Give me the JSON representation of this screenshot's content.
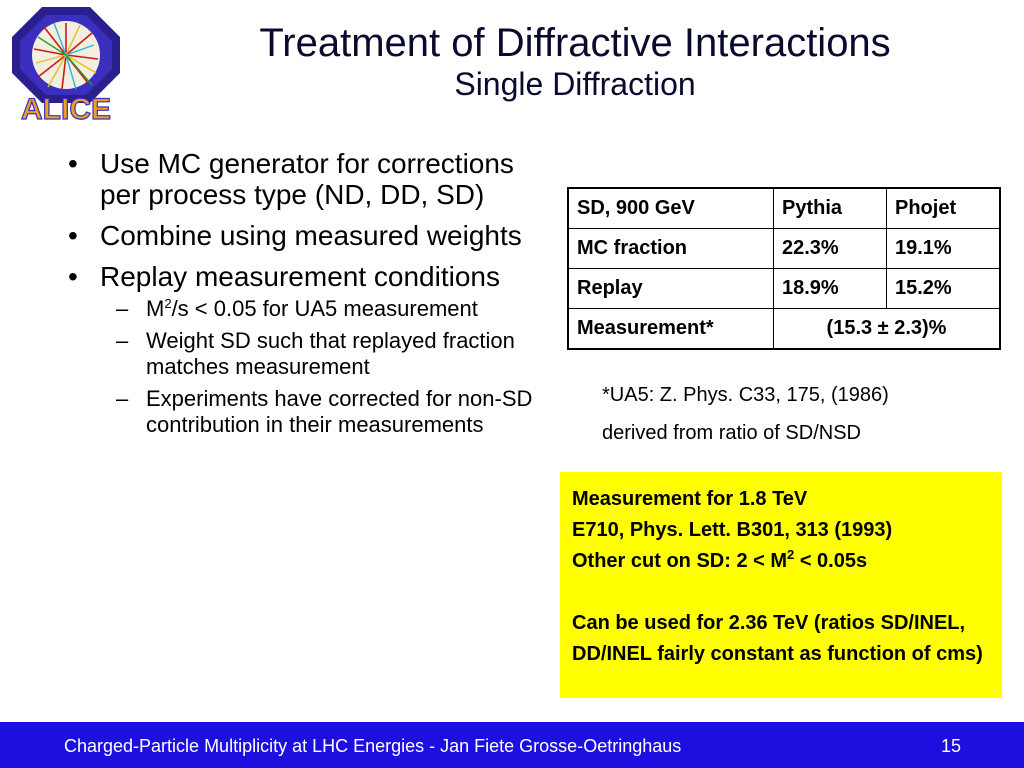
{
  "slide": {
    "title": "Treatment of Diffractive Interactions",
    "subtitle": "Single Diffraction"
  },
  "logo": {
    "text": "ALICE",
    "icon": "alice-logo-icon"
  },
  "bullets": [
    {
      "marker": "•",
      "text": "Use MC generator for corrections per process type (ND, DD, SD)"
    },
    {
      "marker": "•",
      "text": "Combine using measured weights"
    },
    {
      "marker": "•",
      "text": "Replay measurement conditions"
    }
  ],
  "subbullets": {
    "marker": "–",
    "s1": {
      "pre": "M",
      "sup": "2",
      "post": "/s < 0.05 for UA5 measurement"
    },
    "s2": "Weight SD such that replayed fraction matches measurement",
    "s3": "Experiments have corrected for non-SD contribution in their measurements"
  },
  "table": {
    "header": [
      "SD, 900 GeV",
      "Pythia",
      "Phojet"
    ],
    "rows": [
      [
        "MC fraction",
        "22.3%",
        "19.1%"
      ],
      [
        "Replay",
        "18.9%",
        "15.2%"
      ]
    ],
    "measurement": {
      "label": "Measurement*",
      "value": "(15.3 ± 2.3)%"
    }
  },
  "reference": {
    "line1": "*UA5: Z. Phys. C33, 175, (1986)",
    "line2": "derived from ratio of SD/NSD"
  },
  "yellow_box": {
    "line1": "Measurement for 1.8 TeV",
    "line2": "E710, Phys. Lett. B301, 313 (1993)",
    "line3": {
      "pre": "Other cut on SD: 2 < M",
      "sup": "2",
      "post": " < 0.05s"
    },
    "line4": "Can be used for 2.36 TeV (ratios SD/INEL, DD/INEL fairly constant as function of cms)",
    "background": "#ffff00"
  },
  "footer": {
    "text": "Charged-Particle Multiplicity at LHC Energies - Jan Fiete Grosse-Oetringhaus",
    "page": "15",
    "background": "#1c0fe0"
  }
}
